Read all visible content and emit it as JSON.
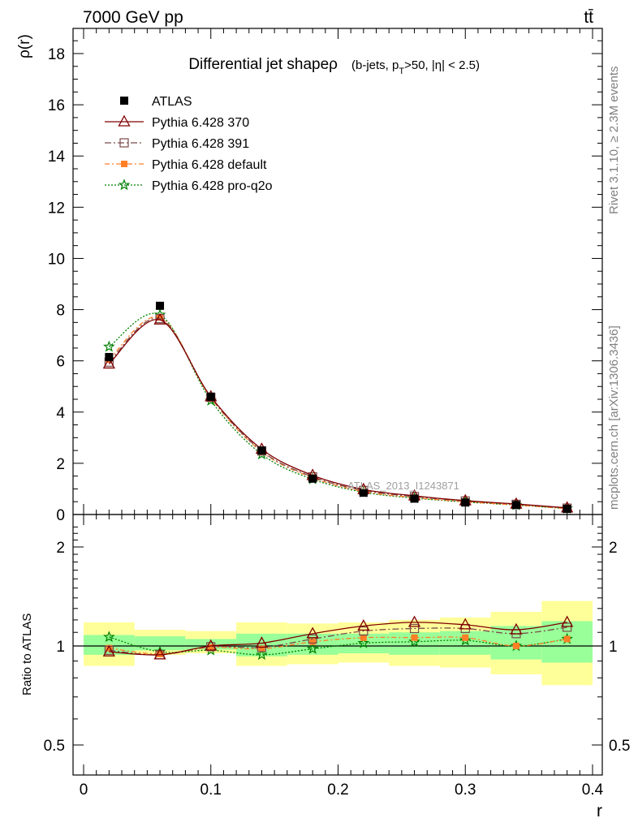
{
  "header": {
    "left": "7000 GeV pp",
    "right": "tt̄"
  },
  "side_labels": {
    "rivet": "Rivet 3.1.10, ≥ 2.3M events",
    "mcplots": "mcplots.cern.ch [arXiv:1306.3436]"
  },
  "chart_data": [
    {
      "type": "line",
      "title": "Differential jet shapeρ",
      "subtitle_parts": [
        "(b-jets, p",
        "T",
        ">50, |η| < 2.5)"
      ],
      "ylabel": "ρ(r)",
      "xlabel": "r",
      "xlim": [
        -0.01,
        0.4
      ],
      "ylim": [
        0,
        19
      ],
      "yticks": [
        0,
        2,
        4,
        6,
        8,
        10,
        12,
        14,
        16,
        18
      ],
      "watermark": "ATLAS_2013_I1243871",
      "legend_placement": "top-left",
      "x": [
        0.02,
        0.06,
        0.1,
        0.14,
        0.18,
        0.22,
        0.26,
        0.3,
        0.34,
        0.38
      ],
      "series": [
        {
          "name": "ATLAS",
          "color": "#000000",
          "marker": "filled-square",
          "values": [
            6.15,
            8.15,
            4.6,
            2.5,
            1.4,
            0.85,
            0.62,
            0.47,
            0.37,
            0.22
          ]
        },
        {
          "name": "Pythia 6.428 370",
          "color": "#800000",
          "marker": "open-triangle",
          "dash": "",
          "values": [
            5.88,
            7.6,
            4.6,
            2.55,
            1.53,
            0.98,
            0.73,
            0.54,
            0.41,
            0.26
          ]
        },
        {
          "name": "Pythia 6.428 391",
          "color": "#7a4a4a",
          "marker": "open-square",
          "dash": "8,3,2,3",
          "values": [
            5.95,
            7.65,
            4.58,
            2.48,
            1.47,
            0.94,
            0.7,
            0.53,
            0.4,
            0.25
          ]
        },
        {
          "name": "Pythia 6.428 default",
          "color": "#ff7f27",
          "marker": "filled-square-small",
          "dash": "6,3,2,3",
          "values": [
            6.05,
            7.7,
            4.55,
            2.45,
            1.44,
            0.9,
            0.66,
            0.5,
            0.37,
            0.23
          ]
        },
        {
          "name": "Pythia 6.428 pro-q2o",
          "color": "#008000",
          "marker": "star",
          "dash": "2,2",
          "values": [
            6.55,
            7.8,
            4.45,
            2.35,
            1.38,
            0.87,
            0.64,
            0.49,
            0.37,
            0.23
          ]
        }
      ]
    },
    {
      "type": "line",
      "ylabel": "Ratio to ATLAS",
      "xlabel": "r",
      "xlim": [
        -0.01,
        0.4
      ],
      "xticks": [
        0,
        0.1,
        0.2,
        0.3,
        0.4
      ],
      "ylim_log": [
        0.4,
        2.4
      ],
      "ytick_labels": [
        "0.5",
        "1",
        "2"
      ],
      "reference_line": 1,
      "bands": {
        "x_edges": [
          0.0,
          0.04,
          0.08,
          0.12,
          0.16,
          0.2,
          0.24,
          0.28,
          0.32,
          0.36,
          0.4
        ],
        "yellow_low": [
          0.87,
          0.94,
          0.95,
          0.87,
          0.88,
          0.89,
          0.87,
          0.86,
          0.82,
          0.76
        ],
        "yellow_high": [
          1.18,
          1.12,
          1.11,
          1.18,
          1.17,
          1.18,
          1.2,
          1.22,
          1.27,
          1.37
        ],
        "green_low": [
          0.94,
          0.97,
          0.975,
          0.93,
          0.94,
          0.95,
          0.94,
          0.94,
          0.91,
          0.89
        ],
        "green_high": [
          1.08,
          1.07,
          1.05,
          1.09,
          1.09,
          1.09,
          1.1,
          1.11,
          1.15,
          1.19
        ]
      },
      "series": [
        {
          "name": "Pythia 6.428 370",
          "color": "#800000",
          "marker": "open-triangle",
          "dash": "",
          "values": [
            0.96,
            0.94,
            1.0,
            1.02,
            1.09,
            1.15,
            1.18,
            1.16,
            1.12,
            1.18
          ]
        },
        {
          "name": "Pythia 6.428 391",
          "color": "#7a4a4a",
          "marker": "open-square",
          "dash": "8,3,2,3",
          "values": [
            0.97,
            0.94,
            0.995,
            0.99,
            1.05,
            1.11,
            1.13,
            1.13,
            1.09,
            1.14
          ]
        },
        {
          "name": "Pythia 6.428 default",
          "color": "#ff7f27",
          "marker": "filled-square-small",
          "dash": "6,3,2,3",
          "values": [
            0.985,
            0.945,
            0.99,
            0.98,
            1.03,
            1.06,
            1.06,
            1.06,
            1.0,
            1.05
          ]
        },
        {
          "name": "Pythia 6.428 pro-q2o",
          "color": "#008000",
          "marker": "star",
          "dash": "2,2",
          "values": [
            1.065,
            0.96,
            0.97,
            0.94,
            0.98,
            1.02,
            1.03,
            1.04,
            1.0,
            1.05
          ]
        }
      ]
    }
  ]
}
